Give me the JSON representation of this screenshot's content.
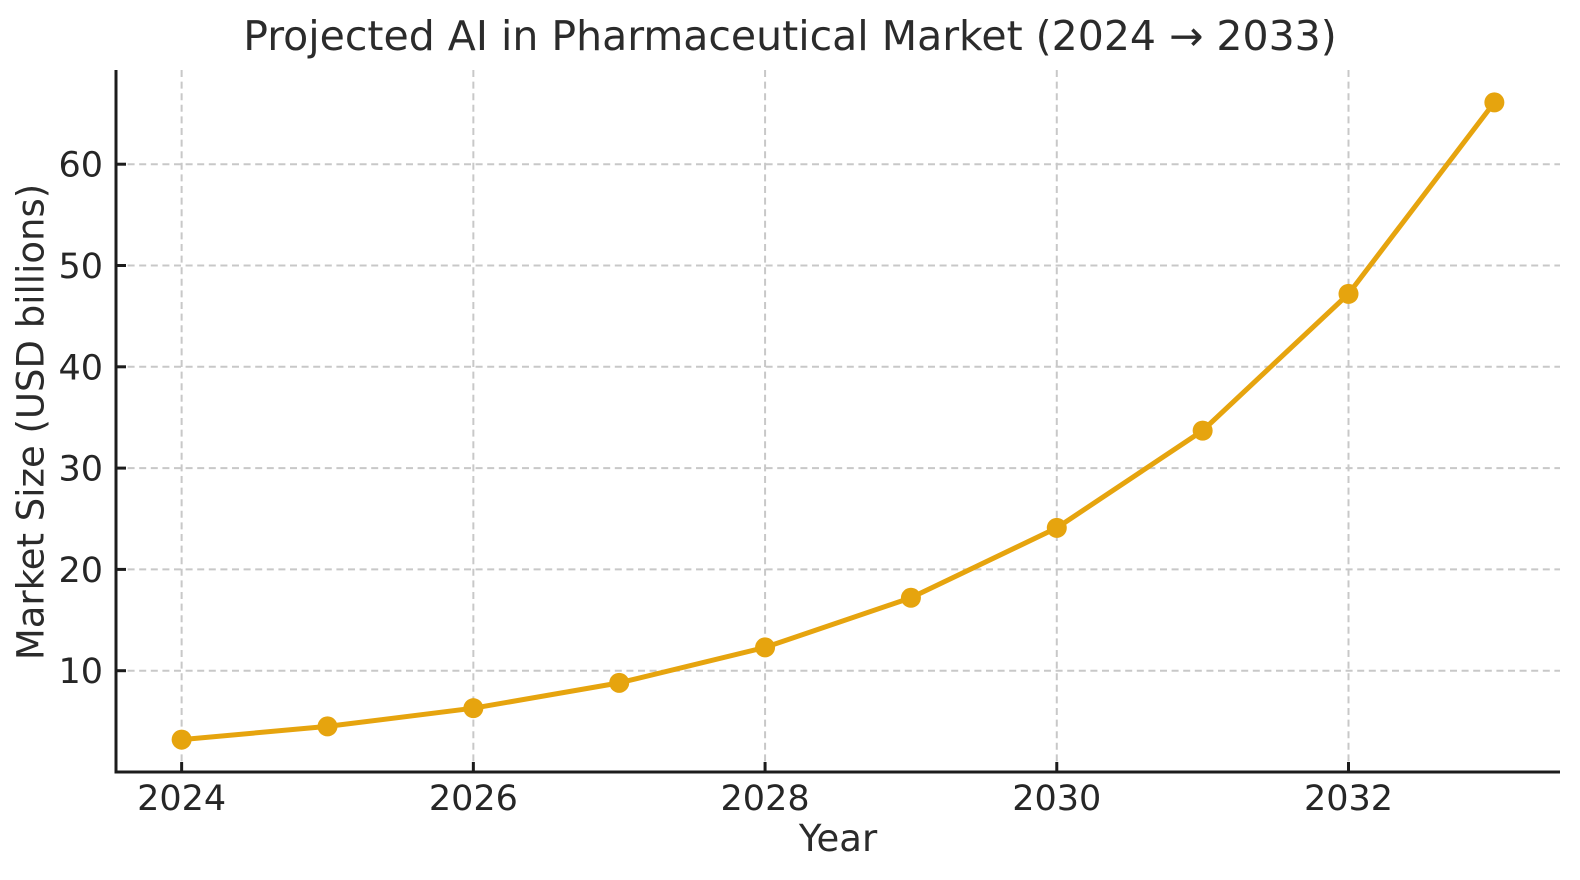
{
  "chart_data": {
    "type": "line",
    "title": "Projected AI in Pharmaceutical Market (2024 → 2033)",
    "xlabel": "Year",
    "ylabel": "Market Size (USD billions)",
    "x": [
      2024,
      2025,
      2026,
      2027,
      2028,
      2029,
      2030,
      2031,
      2032,
      2033
    ],
    "values": [
      3.2,
      4.5,
      6.3,
      8.8,
      12.3,
      17.2,
      24.1,
      33.7,
      47.2,
      66.1
    ],
    "xticks": [
      2024,
      2026,
      2028,
      2030,
      2032
    ],
    "yticks": [
      10,
      20,
      30,
      40,
      50,
      60
    ],
    "xlim": [
      2023.55,
      2033.45
    ],
    "ylim": [
      0,
      69.3
    ],
    "grid": true,
    "grid_style": "dashed",
    "legend_position": "none",
    "line_color": "#E6A40E",
    "marker": "circle",
    "marker_color": "#E6A40E",
    "grid_color": "#C8C8C8",
    "axis_color": "#1C1C1C",
    "text_color": "#262626",
    "background_color": "#FFFFFF"
  }
}
